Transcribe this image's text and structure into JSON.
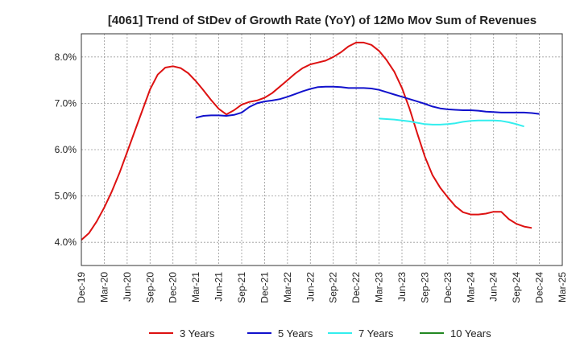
{
  "chart_data": {
    "type": "line",
    "title": "[4061]  Trend of StDev of Growth Rate (YoY) of 12Mo Mov Sum of Revenues",
    "xlabel": "",
    "ylabel": "",
    "ylim": [
      3.5,
      8.5
    ],
    "yticks": [
      4.0,
      5.0,
      6.0,
      7.0,
      8.0
    ],
    "ytick_labels": [
      "4.0%",
      "5.0%",
      "6.0%",
      "7.0%",
      "8.0%"
    ],
    "x_start": "Dec-19",
    "x_ticks": [
      "Dec-19",
      "Mar-20",
      "Jun-20",
      "Sep-20",
      "Dec-20",
      "Mar-21",
      "Jun-21",
      "Sep-21",
      "Dec-21",
      "Mar-22",
      "Jun-22",
      "Sep-22",
      "Dec-22",
      "Mar-23",
      "Jun-23",
      "Sep-23",
      "Dec-23",
      "Mar-24",
      "Jun-24",
      "Sep-24",
      "Dec-24",
      "Mar-25"
    ],
    "grid": true,
    "legend_position": "bottom",
    "series": [
      {
        "name": "3 Years",
        "color": "#dd1111",
        "start_index": 0,
        "values": [
          4.05,
          4.2,
          4.45,
          4.75,
          5.1,
          5.5,
          5.95,
          6.4,
          6.85,
          7.3,
          7.62,
          7.77,
          7.8,
          7.76,
          7.65,
          7.48,
          7.28,
          7.07,
          6.88,
          6.76,
          6.85,
          6.97,
          7.03,
          7.06,
          7.12,
          7.22,
          7.36,
          7.5,
          7.64,
          7.76,
          7.84,
          7.88,
          7.92,
          8.0,
          8.1,
          8.23,
          8.31,
          8.31,
          8.26,
          8.13,
          7.93,
          7.68,
          7.33,
          6.88,
          6.35,
          5.85,
          5.45,
          5.18,
          4.97,
          4.78,
          4.65,
          4.6,
          4.6,
          4.62,
          4.66,
          4.66,
          4.5,
          4.4,
          4.34,
          4.31
        ]
      },
      {
        "name": "5 Years",
        "color": "#1111cc",
        "start_index": 15,
        "values": [
          6.69,
          6.73,
          6.74,
          6.74,
          6.73,
          6.75,
          6.8,
          6.92,
          7.0,
          7.04,
          7.06,
          7.09,
          7.14,
          7.2,
          7.26,
          7.31,
          7.35,
          7.36,
          7.36,
          7.35,
          7.33,
          7.33,
          7.33,
          7.32,
          7.29,
          7.24,
          7.19,
          7.14,
          7.09,
          7.04,
          6.99,
          6.93,
          6.89,
          6.87,
          6.86,
          6.85,
          6.85,
          6.84,
          6.82,
          6.81,
          6.8,
          6.8,
          6.8,
          6.8,
          6.79,
          6.77
        ]
      },
      {
        "name": "7 Years",
        "color": "#33eeee",
        "start_index": 39,
        "values": [
          6.67,
          6.66,
          6.65,
          6.63,
          6.61,
          6.58,
          6.55,
          6.54,
          6.54,
          6.55,
          6.57,
          6.6,
          6.62,
          6.63,
          6.63,
          6.63,
          6.62,
          6.59,
          6.55,
          6.5
        ]
      },
      {
        "name": "10 Years",
        "color": "#228822",
        "start_index": 0,
        "values": []
      }
    ]
  }
}
